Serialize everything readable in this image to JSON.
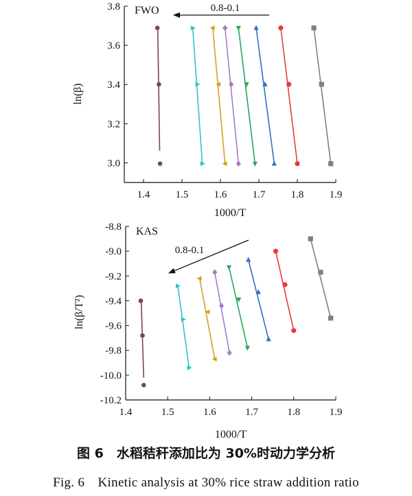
{
  "chart_data": [
    {
      "type": "scatter",
      "panel_label": "FWO",
      "annotation": "0.8-0.1",
      "xlabel": "1000/T",
      "ylabel": "ln(β)",
      "xlim": [
        1.35,
        1.9
      ],
      "ylim": [
        2.9,
        3.8
      ],
      "xticks": [
        "1.4",
        "1.5",
        "1.6",
        "1.7",
        "1.8",
        "1.9"
      ],
      "yticks": [
        "3.0",
        "3.2",
        "3.4",
        "3.6",
        "3.8"
      ],
      "grid": false,
      "series": [
        {
          "color": "#7f7f7f",
          "marker": "square",
          "points": [
            [
              1.843,
              3.689
            ],
            [
              1.863,
              3.401
            ],
            [
              1.887,
              2.996
            ]
          ],
          "fit": [
            [
              1.843,
              3.689
            ],
            [
              1.887,
              2.996
            ]
          ]
        },
        {
          "color": "#e8393e",
          "marker": "circle",
          "points": [
            [
              1.757,
              3.689
            ],
            [
              1.778,
              3.401
            ],
            [
              1.8,
              2.996
            ]
          ],
          "fit": [
            [
              1.757,
              3.689
            ],
            [
              1.8,
              2.996
            ]
          ]
        },
        {
          "color": "#2f6fc2",
          "marker": "triangle-up",
          "points": [
            [
              1.693,
              3.689
            ],
            [
              1.716,
              3.401
            ],
            [
              1.74,
              2.996
            ]
          ],
          "fit": [
            [
              1.693,
              3.689
            ],
            [
              1.74,
              2.996
            ]
          ]
        },
        {
          "color": "#2aa55a",
          "marker": "triangle-down",
          "points": [
            [
              1.647,
              3.689
            ],
            [
              1.668,
              3.401
            ],
            [
              1.69,
              2.996
            ]
          ],
          "fit": [
            [
              1.647,
              3.689
            ],
            [
              1.69,
              2.996
            ]
          ]
        },
        {
          "color": "#a67bc9",
          "marker": "diamond",
          "points": [
            [
              1.612,
              3.689
            ],
            [
              1.628,
              3.401
            ],
            [
              1.647,
              2.996
            ]
          ],
          "fit": [
            [
              1.612,
              3.689
            ],
            [
              1.647,
              2.996
            ]
          ]
        },
        {
          "color": "#d4a020",
          "marker": "triangle-left",
          "points": [
            [
              1.58,
              3.689
            ],
            [
              1.595,
              3.401
            ],
            [
              1.612,
              2.996
            ]
          ],
          "fit": [
            [
              1.58,
              3.689
            ],
            [
              1.612,
              2.996
            ]
          ]
        },
        {
          "color": "#36c2c8",
          "marker": "triangle-right",
          "points": [
            [
              1.528,
              3.689
            ],
            [
              1.54,
              3.401
            ],
            [
              1.553,
              2.996
            ]
          ],
          "fit": [
            [
              1.528,
              3.689
            ],
            [
              1.553,
              2.996
            ]
          ]
        },
        {
          "color": "#7a4747",
          "marker": "hexagon",
          "points": [
            [
              1.436,
              3.689
            ],
            [
              1.44,
              3.401
            ],
            [
              1.443,
              2.996
            ]
          ],
          "fit": [
            [
              1.437,
              3.689
            ],
            [
              1.442,
              3.062
            ]
          ]
        }
      ]
    },
    {
      "type": "scatter",
      "panel_label": "KAS",
      "annotation": "0.8-0.1",
      "xlabel": "1000/T",
      "ylabel": "ln(β/T²)",
      "xlim": [
        1.4,
        1.9
      ],
      "ylim": [
        -10.2,
        -8.8
      ],
      "xticks": [
        "1.4",
        "1.5",
        "1.6",
        "1.7",
        "1.8",
        "1.9"
      ],
      "yticks": [
        "-8.8",
        "-9.0",
        "-9.2",
        "-9.4",
        "-9.6",
        "-9.8",
        "-10.0",
        "-10.2"
      ],
      "grid": false,
      "series": [
        {
          "color": "#7f7f7f",
          "marker": "square",
          "points": [
            [
              1.84,
              -8.9
            ],
            [
              1.864,
              -9.17
            ],
            [
              1.888,
              -9.54
            ]
          ],
          "fit": [
            [
              1.84,
              -8.9
            ],
            [
              1.888,
              -9.54
            ]
          ]
        },
        {
          "color": "#e8393e",
          "marker": "circle",
          "points": [
            [
              1.757,
              -9.0
            ],
            [
              1.779,
              -9.27
            ],
            [
              1.8,
              -9.64
            ]
          ],
          "fit": [
            [
              1.757,
              -9.0
            ],
            [
              1.8,
              -9.64
            ]
          ]
        },
        {
          "color": "#2f6fc2",
          "marker": "triangle-up",
          "points": [
            [
              1.692,
              -9.07
            ],
            [
              1.716,
              -9.33
            ],
            [
              1.74,
              -9.71
            ]
          ],
          "fit": [
            [
              1.692,
              -9.07
            ],
            [
              1.74,
              -9.71
            ]
          ]
        },
        {
          "color": "#2aa55a",
          "marker": "triangle-down",
          "points": [
            [
              1.646,
              -9.13
            ],
            [
              1.669,
              -9.39
            ],
            [
              1.69,
              -9.78
            ]
          ],
          "fit": [
            [
              1.646,
              -9.13
            ],
            [
              1.69,
              -9.78
            ]
          ]
        },
        {
          "color": "#a67bc9",
          "marker": "diamond",
          "points": [
            [
              1.612,
              -9.17
            ],
            [
              1.628,
              -9.44
            ],
            [
              1.647,
              -9.82
            ]
          ],
          "fit": [
            [
              1.612,
              -9.17
            ],
            [
              1.647,
              -9.82
            ]
          ]
        },
        {
          "color": "#d4a020",
          "marker": "triangle-left",
          "points": [
            [
              1.576,
              -9.22
            ],
            [
              1.595,
              -9.49
            ],
            [
              1.612,
              -9.87
            ]
          ],
          "fit": [
            [
              1.576,
              -9.22
            ],
            [
              1.612,
              -9.87
            ]
          ]
        },
        {
          "color": "#36c2c8",
          "marker": "triangle-right",
          "points": [
            [
              1.524,
              -9.28
            ],
            [
              1.537,
              -9.55
            ],
            [
              1.551,
              -9.94
            ]
          ],
          "fit": [
            [
              1.524,
              -9.28
            ],
            [
              1.551,
              -9.94
            ]
          ]
        },
        {
          "color": "#7a4747",
          "marker": "hexagon",
          "points": [
            [
              1.436,
              -9.4
            ],
            [
              1.44,
              -9.68
            ],
            [
              1.443,
              -10.08
            ]
          ],
          "fit": [
            [
              1.437,
              -9.4
            ],
            [
              1.443,
              -10.02
            ]
          ]
        }
      ]
    }
  ],
  "caption": {
    "cn": "图 6　水稻秸秆添加比为 30%时动力学分析",
    "en": "Fig. 6　Kinetic analysis at 30% rice straw addition ratio"
  }
}
